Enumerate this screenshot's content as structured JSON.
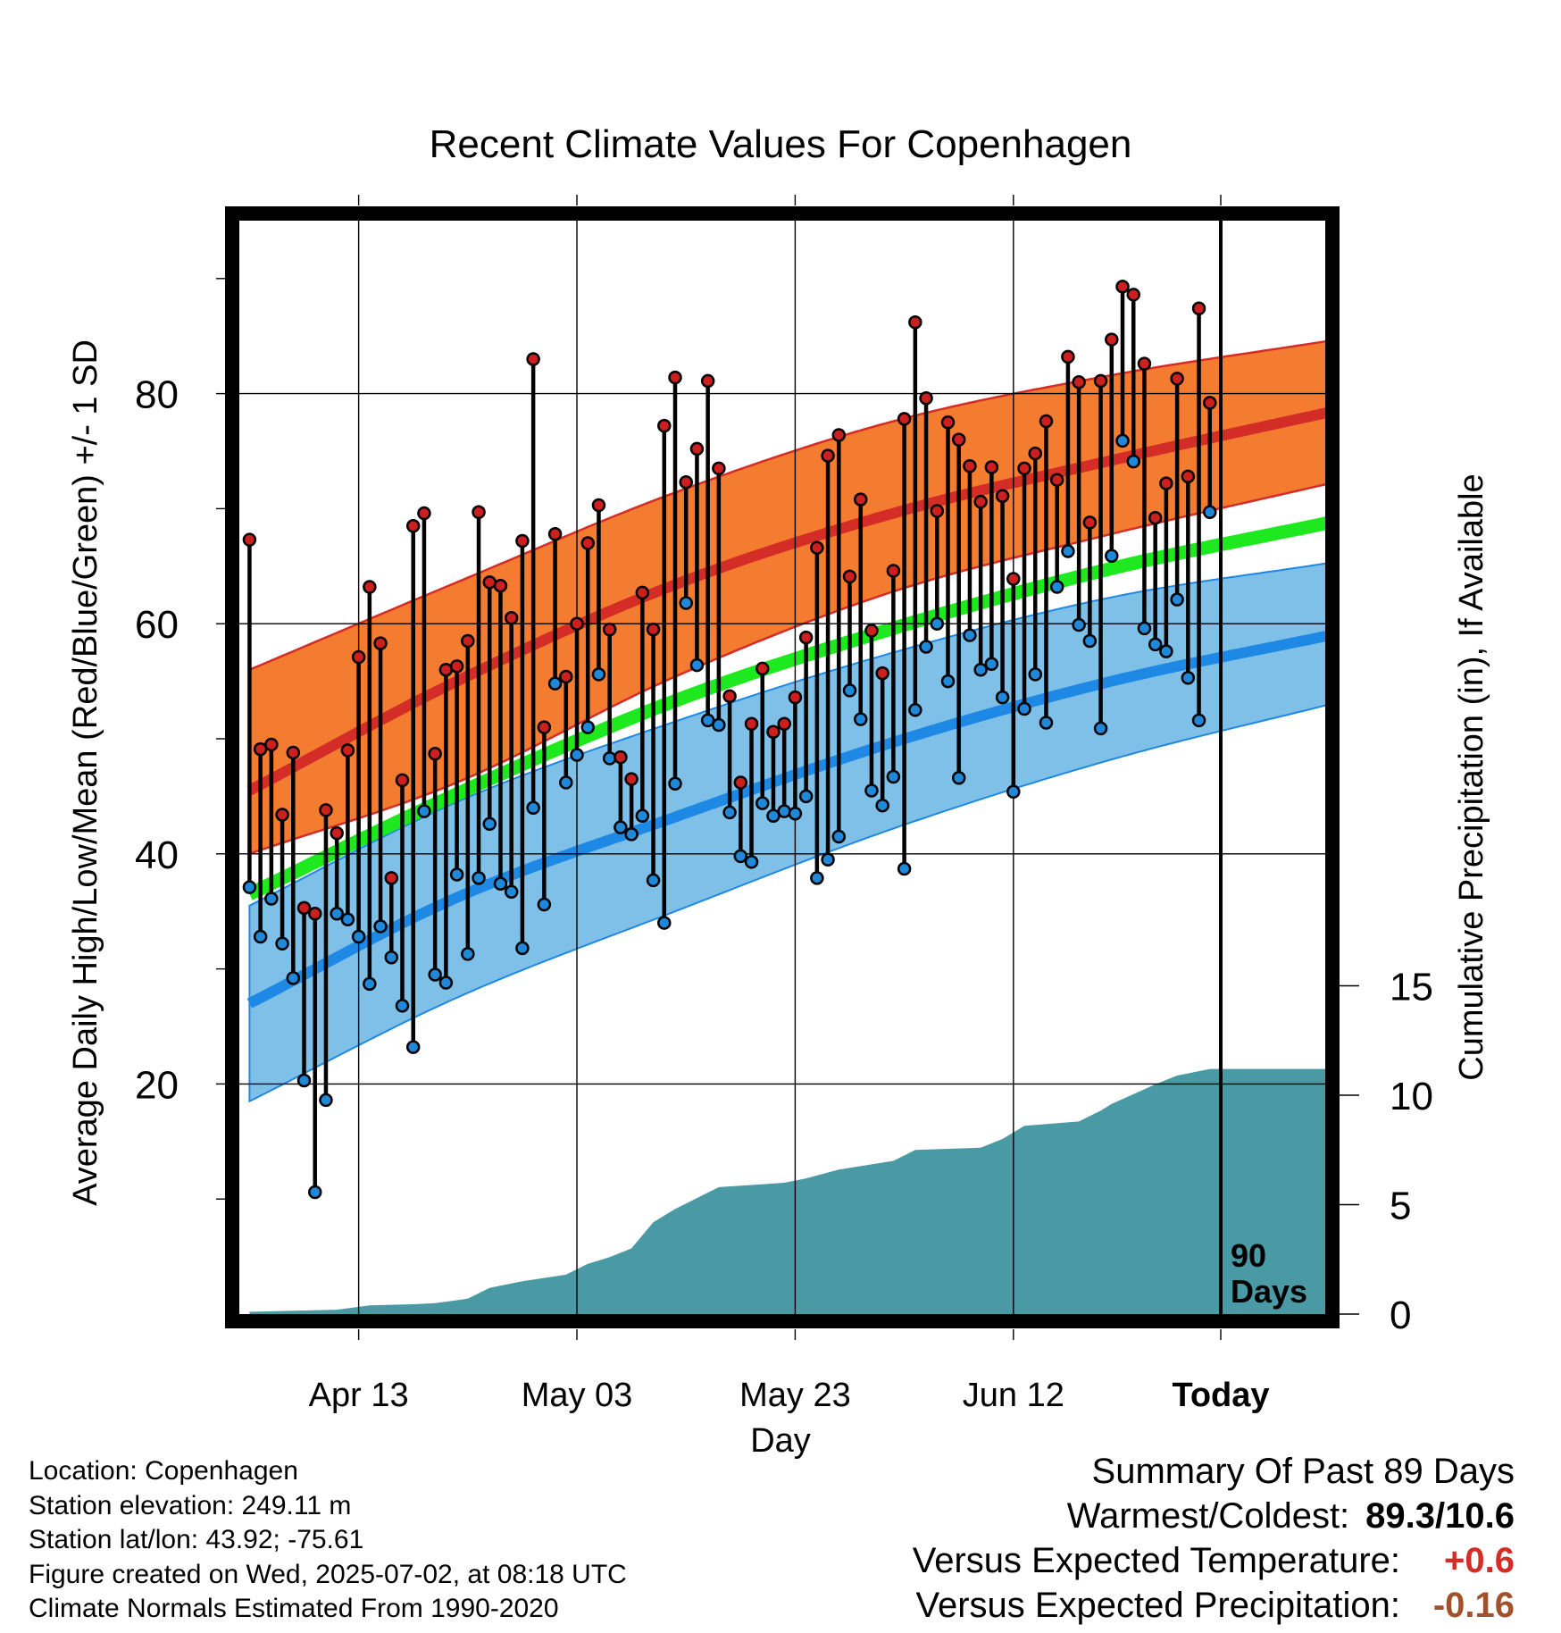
{
  "chart_data": {
    "type": "line",
    "title": "Recent Climate Values For Copenhagen",
    "xlabel": "Day",
    "ylabel": "Average Daily High/Low/Mean (Red/Blue/Green) +/- 1 SD",
    "y2label": "Cumulative Precipitation (in), If Available",
    "x_range_days": [
      -89,
      10
    ],
    "ylim": [
      0,
      95
    ],
    "y2lim": [
      0,
      19
    ],
    "y_ticks": [
      20,
      40,
      60,
      80
    ],
    "y2_ticks": [
      0,
      5,
      10,
      15
    ],
    "x_ticks": [
      {
        "day": -79,
        "label": "Apr 13"
      },
      {
        "day": -59,
        "label": "May 03"
      },
      {
        "day": -39,
        "label": "May 23"
      },
      {
        "day": -19,
        "label": "Jun 12"
      },
      {
        "day": 0,
        "label": "Today",
        "bold": true
      }
    ],
    "today_label": "90\nDays",
    "grid": true,
    "colors": {
      "high_band": "#f47c30",
      "high_line": "#d42d27",
      "low_band": "#7fc0e8",
      "low_line": "#1e88e5",
      "mean_line": "#1ee81e",
      "precip": "#4a9aa5",
      "high_dot": "#cc1f1f",
      "low_dot": "#2088d8"
    },
    "normals": {
      "days": [
        -89,
        -70,
        -50,
        -30,
        -10,
        10
      ],
      "high_mean": [
        45.5,
        55.0,
        63.4,
        69.6,
        74.2,
        78.4
      ],
      "high_upper": [
        56.0,
        63.6,
        71.4,
        77.6,
        81.6,
        84.6
      ],
      "high_lower": [
        40.0,
        46.2,
        55.4,
        62.8,
        67.8,
        72.2
      ],
      "mean": [
        36.5,
        45.2,
        53.3,
        59.6,
        64.8,
        68.8
      ],
      "low_mean": [
        27.0,
        36.2,
        43.2,
        49.7,
        55.0,
        59.0
      ],
      "low_upper": [
        35.5,
        44.5,
        51.5,
        57.5,
        62.3,
        65.3
      ],
      "low_lower": [
        18.5,
        27.5,
        35.0,
        42.2,
        48.2,
        53.0
      ]
    },
    "series": [
      {
        "name": "High",
        "values": [
          67.3,
          49.1,
          49.5,
          43.4,
          48.8,
          35.3,
          34.8,
          43.8,
          41.8,
          49.0,
          57.1,
          63.2,
          58.3,
          37.9,
          46.4,
          68.5,
          69.6,
          48.7,
          56.0,
          56.3,
          58.5,
          69.7,
          63.6,
          63.3,
          60.5,
          67.2,
          83.0,
          51.0,
          67.8,
          55.4,
          60.0,
          67.0,
          70.3,
          59.5,
          48.4,
          46.5,
          62.7,
          59.5,
          77.2,
          81.4,
          72.3,
          75.2,
          81.1,
          73.5,
          53.7,
          46.2,
          51.3,
          56.1,
          50.6,
          51.3,
          53.6,
          58.8,
          66.6,
          74.6,
          76.4,
          64.1,
          70.8,
          59.4,
          55.7,
          64.6,
          77.8,
          86.2,
          79.6,
          69.8,
          77.5,
          76.0,
          73.7,
          70.6,
          73.6,
          71.1,
          63.9,
          73.5,
          74.8,
          77.6,
          72.5,
          83.2,
          81.0,
          68.8,
          81.1,
          84.7,
          89.3,
          88.6,
          82.6,
          69.2,
          72.2,
          81.3,
          72.8,
          87.4,
          79.2
        ]
      },
      {
        "name": "Low",
        "values": [
          37.1,
          32.8,
          36.1,
          32.2,
          29.2,
          20.3,
          10.6,
          18.6,
          34.8,
          34.3,
          32.8,
          28.7,
          33.7,
          31.0,
          26.8,
          23.2,
          43.7,
          29.5,
          28.8,
          38.2,
          31.3,
          37.9,
          42.6,
          37.4,
          36.7,
          31.8,
          44.0,
          35.6,
          54.8,
          46.2,
          48.6,
          51.0,
          55.6,
          48.3,
          42.3,
          41.7,
          43.3,
          37.7,
          34.0,
          46.1,
          61.8,
          56.4,
          51.6,
          51.2,
          43.6,
          39.8,
          39.3,
          44.4,
          43.3,
          43.7,
          43.5,
          45.0,
          37.9,
          39.5,
          41.5,
          54.2,
          51.7,
          45.5,
          44.2,
          46.7,
          38.7,
          52.5,
          58.0,
          60.0,
          55.0,
          46.6,
          59.0,
          56.0,
          56.5,
          53.6,
          45.4,
          52.6,
          55.6,
          51.4,
          63.2,
          66.3,
          59.9,
          58.5,
          50.9,
          65.9,
          75.9,
          74.1,
          59.6,
          58.2,
          57.6,
          62.1,
          55.3,
          51.6,
          69.7
        ]
      }
    ],
    "precip_cumulative": {
      "days": [
        -89,
        -85,
        -81,
        -78,
        -74,
        -72,
        -69,
        -67,
        -65,
        -64,
        -60,
        -58,
        -56,
        -54,
        -52,
        -50,
        -46,
        -43,
        -40,
        -38,
        -35,
        -30,
        -28,
        -22,
        -20,
        -18,
        -13,
        -11,
        -10,
        -6,
        -4,
        -1,
        10
      ],
      "values": [
        0.1,
        0.15,
        0.2,
        0.4,
        0.45,
        0.5,
        0.7,
        1.2,
        1.4,
        1.5,
        1.8,
        2.3,
        2.6,
        3.0,
        4.2,
        4.8,
        5.8,
        5.9,
        6.0,
        6.2,
        6.6,
        7.0,
        7.5,
        7.6,
        8.0,
        8.6,
        8.8,
        9.3,
        9.6,
        10.5,
        10.9,
        11.2,
        11.2
      ]
    }
  },
  "info": {
    "location": "Location: Copenhagen",
    "elevation": "Station elevation: 249.11 m",
    "latlon": "Station lat/lon: 43.92; -75.61",
    "created": "Figure created on Wed, 2025-07-02, at 08:18 UTC",
    "normals": "Climate Normals Estimated From 1990-2020"
  },
  "summary": {
    "title": "Summary Of Past 89 Days",
    "warmest_label": "Warmest/Coldest:",
    "warmest_value": "89.3/10.6",
    "temp_label": "Versus Expected Temperature:",
    "temp_value": "+0.6",
    "temp_color": "#d42d27",
    "precip_label": "Versus Expected Precipitation:",
    "precip_value": "-0.16",
    "precip_color": "#a0522d"
  }
}
